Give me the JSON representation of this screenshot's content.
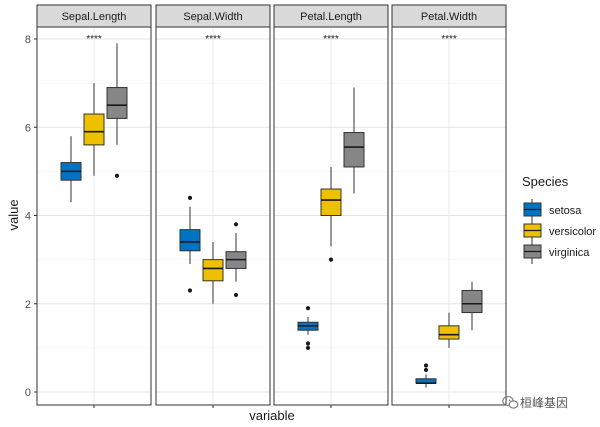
{
  "chart_data": {
    "type": "boxplot",
    "facet_variable": "variable",
    "facets": [
      "Sepal.Length",
      "Sepal.Width",
      "Petal.Length",
      "Petal.Width"
    ],
    "xlabel": "variable",
    "ylabel": "value",
    "ylim": [
      0,
      8
    ],
    "yticks": [
      0,
      2,
      4,
      6,
      8
    ],
    "grid": true,
    "legend_title": "Species",
    "legend_position": "right",
    "groups": [
      {
        "name": "setosa",
        "color": "#0074C2"
      },
      {
        "name": "versicolor",
        "color": "#EFC000"
      },
      {
        "name": "virginica",
        "color": "#868686"
      }
    ],
    "significance": [
      "****",
      "****",
      "****",
      "****"
    ],
    "boxes": {
      "Sepal.Length": [
        {
          "q1": 4.8,
          "median": 5.0,
          "q3": 5.2,
          "min": 4.3,
          "max": 5.8,
          "outliers": []
        },
        {
          "q1": 5.6,
          "median": 5.9,
          "q3": 6.3,
          "min": 4.9,
          "max": 7.0,
          "outliers": []
        },
        {
          "q1": 6.2,
          "median": 6.5,
          "q3": 6.9,
          "min": 5.6,
          "max": 7.9,
          "outliers": [
            4.9
          ]
        }
      ],
      "Sepal.Width": [
        {
          "q1": 3.2,
          "median": 3.4,
          "q3": 3.68,
          "min": 2.9,
          "max": 4.2,
          "outliers": [
            4.4,
            2.3
          ]
        },
        {
          "q1": 2.52,
          "median": 2.8,
          "q3": 3.0,
          "min": 2.0,
          "max": 3.4,
          "outliers": []
        },
        {
          "q1": 2.8,
          "median": 3.0,
          "q3": 3.18,
          "min": 2.5,
          "max": 3.6,
          "outliers": [
            3.8,
            2.2
          ]
        }
      ],
      "Petal.Length": [
        {
          "q1": 1.4,
          "median": 1.5,
          "q3": 1.58,
          "min": 1.3,
          "max": 1.7,
          "outliers": [
            1.9,
            1.0,
            1.1
          ]
        },
        {
          "q1": 4.0,
          "median": 4.35,
          "q3": 4.6,
          "min": 3.3,
          "max": 5.1,
          "outliers": [
            3.0
          ]
        },
        {
          "q1": 5.1,
          "median": 5.55,
          "q3": 5.88,
          "min": 4.5,
          "max": 6.9,
          "outliers": []
        }
      ],
      "Petal.Width": [
        {
          "q1": 0.2,
          "median": 0.2,
          "q3": 0.3,
          "min": 0.1,
          "max": 0.4,
          "outliers": [
            0.5,
            0.6
          ]
        },
        {
          "q1": 1.2,
          "median": 1.3,
          "q3": 1.5,
          "min": 1.0,
          "max": 1.8,
          "outliers": []
        },
        {
          "q1": 1.8,
          "median": 2.0,
          "q3": 2.3,
          "min": 1.4,
          "max": 2.5,
          "outliers": []
        }
      ]
    }
  },
  "watermark": "桓峰基因"
}
